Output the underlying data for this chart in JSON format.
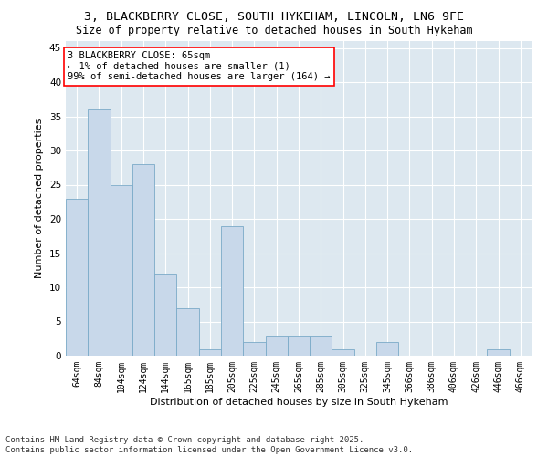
{
  "title_line1": "3, BLACKBERRY CLOSE, SOUTH HYKEHAM, LINCOLN, LN6 9FE",
  "title_line2": "Size of property relative to detached houses in South Hykeham",
  "xlabel": "Distribution of detached houses by size in South Hykeham",
  "ylabel": "Number of detached properties",
  "categories": [
    "64sqm",
    "84sqm",
    "104sqm",
    "124sqm",
    "144sqm",
    "165sqm",
    "185sqm",
    "205sqm",
    "225sqm",
    "245sqm",
    "265sqm",
    "285sqm",
    "305sqm",
    "325sqm",
    "345sqm",
    "366sqm",
    "386sqm",
    "406sqm",
    "426sqm",
    "446sqm",
    "466sqm"
  ],
  "values": [
    23,
    36,
    25,
    28,
    12,
    7,
    1,
    19,
    2,
    3,
    3,
    3,
    1,
    0,
    2,
    0,
    0,
    0,
    0,
    1,
    0
  ],
  "bar_color": "#c8d8ea",
  "bar_edge_color": "#7aaac8",
  "annotation_text": "3 BLACKBERRY CLOSE: 65sqm\n← 1% of detached houses are smaller (1)\n99% of semi-detached houses are larger (164) →",
  "annotation_box_color": "white",
  "annotation_box_edge_color": "red",
  "ylim": [
    0,
    46
  ],
  "yticks": [
    0,
    5,
    10,
    15,
    20,
    25,
    30,
    35,
    40,
    45
  ],
  "background_color": "#dde8f0",
  "footer_line1": "Contains HM Land Registry data © Crown copyright and database right 2025.",
  "footer_line2": "Contains public sector information licensed under the Open Government Licence v3.0.",
  "title_fontsize": 9.5,
  "subtitle_fontsize": 8.5,
  "axis_label_fontsize": 8,
  "tick_fontsize": 7,
  "annotation_fontsize": 7.5,
  "footer_fontsize": 6.5
}
